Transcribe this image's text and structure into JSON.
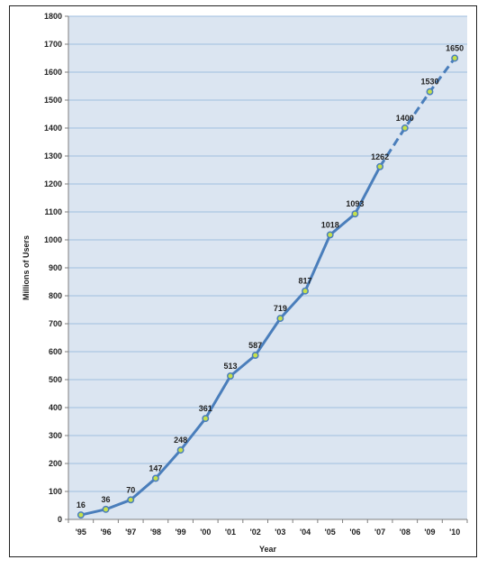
{
  "chart_data": {
    "type": "line",
    "categories": [
      "'95",
      "'96",
      "'97",
      "'98",
      "'99",
      "'00",
      "'01",
      "'02",
      "'03",
      "'04",
      "'05",
      "'06",
      "'07",
      "'08",
      "'09",
      "'10"
    ],
    "series": [
      {
        "values": [
          16,
          36,
          70,
          147,
          248,
          361,
          513,
          587,
          719,
          817,
          1018,
          1093,
          1262,
          1400,
          1530,
          1650
        ],
        "projected_from_index": 12
      }
    ],
    "data_labels": [
      "16",
      "36",
      "70",
      "147",
      "248",
      "361",
      "513",
      "587",
      "719",
      "817",
      "1018",
      "1093",
      "1262",
      "1400",
      "1530",
      "1650"
    ],
    "xlabel": "Year",
    "ylabel": "Millions of Users",
    "ylim": [
      0,
      1800
    ],
    "y_tick_step": 100,
    "grid": "horizontal",
    "colors": {
      "plot_bg": "#dbe5f1",
      "grid": "#9fbfe0",
      "line": "#4a7ebb",
      "marker_fill": "#c6e04a",
      "marker_stroke": "#4a7ebb"
    }
  }
}
